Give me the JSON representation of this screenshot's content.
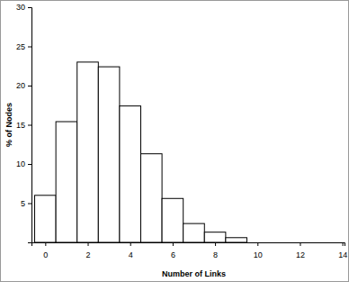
{
  "chart_data": {
    "type": "histogram",
    "x_label": "Number of Links",
    "y_label": "% of Nodes",
    "bins": [
      -0.5,
      0.5,
      1.5,
      2.5,
      3.5,
      4.5,
      5.5,
      6.5,
      7.5,
      8.5,
      9.5
    ],
    "values": [
      6,
      15.4,
      23,
      22.4,
      17.4,
      11.3,
      5.6,
      2.4,
      1.3,
      0.6
    ],
    "color": "#ffffff",
    "xlim": [
      -0.65,
      14.1
    ],
    "xticks": [
      0,
      2,
      4,
      6,
      8,
      10,
      12,
      14
    ],
    "ylim": [
      0,
      30
    ],
    "yticks": [
      5,
      10,
      15,
      20,
      25,
      30
    ],
    "grid": false
  }
}
